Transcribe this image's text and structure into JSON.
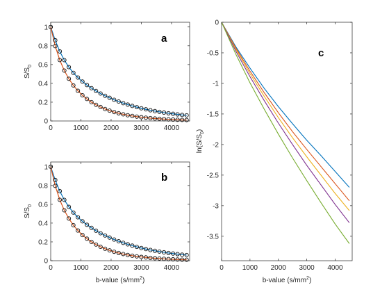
{
  "chart_data": [
    {
      "panel": "a",
      "type": "line+scatter",
      "xlabel": "",
      "ylabel": "S/S",
      "ylabel_sub": "0",
      "xlim": [
        0,
        4600
      ],
      "ylim": [
        0,
        1.05
      ],
      "xticks": [
        0,
        1000,
        2000,
        3000,
        4000
      ],
      "yticks": [
        0,
        0.2,
        0.4,
        0.6,
        0.8,
        1
      ],
      "xtick_labels": [
        "0",
        "1000",
        "2000",
        "3000",
        "4000"
      ],
      "ytick_labels": [
        "0",
        "0.2",
        "0.4",
        "0.6",
        "0.8",
        "1"
      ],
      "grid": false,
      "b_values": [
        0,
        150,
        300,
        450,
        600,
        750,
        900,
        1050,
        1200,
        1350,
        1500,
        1650,
        1800,
        1950,
        2100,
        2250,
        2400,
        2550,
        2700,
        2850,
        3000,
        3150,
        3300,
        3450,
        3600,
        3750,
        3900,
        4050,
        4200,
        4350,
        4500
      ],
      "series": [
        {
          "color": "#0072bd",
          "marker_face": "#4dbeee",
          "points": [
            1.0,
            0.858,
            0.74,
            0.647,
            0.573,
            0.512,
            0.462,
            0.419,
            0.382,
            0.349,
            0.319,
            0.292,
            0.268,
            0.246,
            0.225,
            0.207,
            0.19,
            0.174,
            0.16,
            0.147,
            0.135,
            0.124,
            0.114,
            0.105,
            0.097,
            0.089,
            0.082,
            0.076,
            0.07,
            0.064,
            0.06
          ]
        },
        {
          "color": "#d95319",
          "marker_face": "#d95319",
          "points": [
            1.0,
            0.796,
            0.648,
            0.536,
            0.449,
            0.378,
            0.321,
            0.273,
            0.234,
            0.2,
            0.172,
            0.148,
            0.127,
            0.11,
            0.095,
            0.082,
            0.071,
            0.061,
            0.053,
            0.046,
            0.04,
            0.035,
            0.03,
            0.026,
            0.023,
            0.02,
            0.017,
            0.015,
            0.013,
            0.011,
            0.01
          ]
        }
      ]
    },
    {
      "panel": "b",
      "type": "line+scatter",
      "xlabel": "b-value (s/mm",
      "xlabel_sup": "2",
      "xlabel_close": ")",
      "ylabel": "S/S",
      "ylabel_sub": "0",
      "xlim": [
        0,
        4600
      ],
      "ylim": [
        0,
        1.05
      ],
      "xticks": [
        0,
        1000,
        2000,
        3000,
        4000
      ],
      "yticks": [
        0,
        0.2,
        0.4,
        0.6,
        0.8,
        1
      ],
      "xtick_labels": [
        "0",
        "1000",
        "2000",
        "3000",
        "4000"
      ],
      "ytick_labels": [
        "0",
        "0.2",
        "0.4",
        "0.6",
        "0.8",
        "1"
      ],
      "grid": false,
      "b_values": [
        0,
        150,
        300,
        450,
        600,
        750,
        900,
        1050,
        1200,
        1350,
        1500,
        1650,
        1800,
        1950,
        2100,
        2250,
        2400,
        2550,
        2700,
        2850,
        3000,
        3150,
        3300,
        3450,
        3600,
        3750,
        3900,
        4050,
        4200,
        4350,
        4500
      ],
      "series": [
        {
          "color": "#0072bd",
          "marker_face": "#4dbeee",
          "points": [
            1.0,
            0.858,
            0.74,
            0.647,
            0.573,
            0.512,
            0.462,
            0.419,
            0.382,
            0.349,
            0.319,
            0.292,
            0.268,
            0.246,
            0.225,
            0.207,
            0.19,
            0.174,
            0.16,
            0.147,
            0.135,
            0.124,
            0.114,
            0.105,
            0.097,
            0.089,
            0.082,
            0.076,
            0.07,
            0.064,
            0.06
          ]
        },
        {
          "color": "#d95319",
          "marker_face": "#d95319",
          "points": [
            1.0,
            0.796,
            0.648,
            0.536,
            0.449,
            0.378,
            0.321,
            0.273,
            0.234,
            0.2,
            0.172,
            0.148,
            0.127,
            0.11,
            0.095,
            0.082,
            0.071,
            0.061,
            0.053,
            0.046,
            0.04,
            0.035,
            0.03,
            0.026,
            0.023,
            0.02,
            0.017,
            0.015,
            0.013,
            0.011,
            0.01
          ]
        }
      ]
    },
    {
      "panel": "c",
      "type": "line",
      "xlabel": "b-value (s/mm",
      "xlabel_sup": "2",
      "xlabel_close": ")",
      "ylabel": "ln(S/S",
      "ylabel_sub": "0",
      "ylabel_close": ")",
      "xlim": [
        0,
        4600
      ],
      "ylim": [
        -3.9,
        0
      ],
      "xticks": [
        0,
        1000,
        2000,
        3000,
        4000
      ],
      "yticks": [
        0,
        -0.5,
        -1,
        -1.5,
        -2,
        -2.5,
        -3,
        -3.5
      ],
      "xtick_labels": [
        "0",
        "1000",
        "2000",
        "3000",
        "4000"
      ],
      "ytick_labels": [
        "0",
        "-0.5",
        "-1",
        "-1.5",
        "-2",
        "-2.5",
        "-3",
        "-3.5"
      ],
      "grid": false,
      "x": [
        0,
        500,
        1000,
        1500,
        2000,
        2500,
        3000,
        3500,
        4000,
        4500
      ],
      "series": [
        {
          "color": "#0072bd",
          "values": [
            0,
            -0.4,
            -0.75,
            -1.08,
            -1.38,
            -1.66,
            -1.93,
            -2.18,
            -2.44,
            -2.7
          ]
        },
        {
          "color": "#d95319",
          "values": [
            0,
            -0.42,
            -0.8,
            -1.15,
            -1.48,
            -1.79,
            -2.08,
            -2.36,
            -2.64,
            -2.92
          ]
        },
        {
          "color": "#edb120",
          "values": [
            0,
            -0.44,
            -0.84,
            -1.21,
            -1.56,
            -1.89,
            -2.2,
            -2.5,
            -2.8,
            -3.08
          ]
        },
        {
          "color": "#7e2f8e",
          "values": [
            0,
            -0.47,
            -0.89,
            -1.28,
            -1.65,
            -2.0,
            -2.34,
            -2.66,
            -2.98,
            -3.28
          ]
        },
        {
          "color": "#77ac30",
          "values": [
            0,
            -0.52,
            -0.99,
            -1.42,
            -1.83,
            -2.22,
            -2.59,
            -2.95,
            -3.3,
            -3.62
          ]
        }
      ]
    }
  ]
}
